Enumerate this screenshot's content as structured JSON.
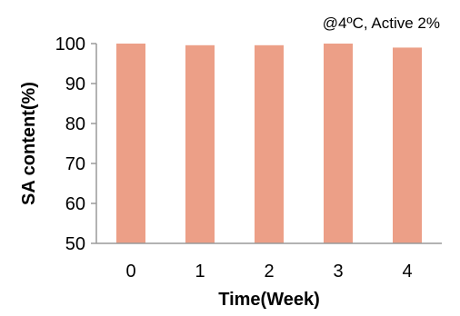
{
  "chart_data": {
    "type": "bar",
    "annotation": "@4ºC, Active 2%",
    "xlabel": "Time(Week)",
    "ylabel": "SA content(%)",
    "categories": [
      "0",
      "1",
      "2",
      "3",
      "4"
    ],
    "series": [
      {
        "values": [
          100,
          99.6,
          99.6,
          100,
          99.0
        ]
      }
    ],
    "ylim": [
      50,
      100
    ],
    "yticks": [
      50,
      60,
      70,
      80,
      90,
      100
    ],
    "grid": false,
    "legend": "none",
    "colors": {
      "bar": "#ec9f87",
      "axis": "#9a9a9a"
    }
  }
}
